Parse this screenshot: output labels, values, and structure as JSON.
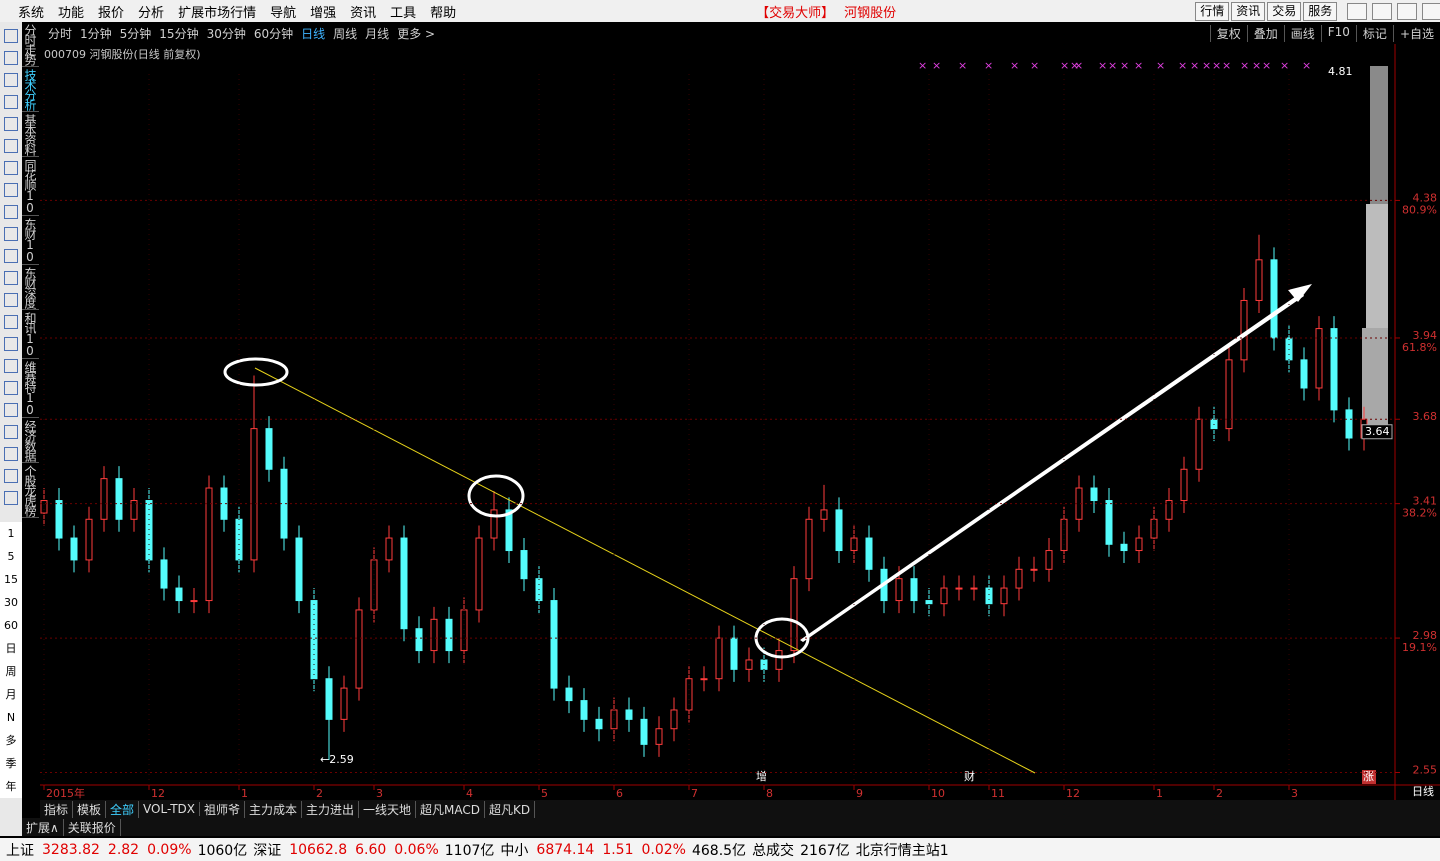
{
  "ui": {
    "menu": [
      "系统",
      "功能",
      "报价",
      "分析",
      "扩展市场行情",
      "导航",
      "增强",
      "资讯",
      "工具",
      "帮助"
    ],
    "app_title": "【交易大师】",
    "stock_title": "河钢股份",
    "top_buttons": [
      "行情",
      "资讯",
      "交易",
      "服务"
    ],
    "periods": [
      "分时",
      "1分钟",
      "5分钟",
      "15分钟",
      "30分钟",
      "60分钟",
      "日线",
      "周线",
      "月线",
      "更多 >"
    ],
    "tools": [
      "复权",
      "叠加",
      "画线",
      "F10",
      "标记",
      "+自选"
    ],
    "side_tabs": [
      "分时走势",
      "技术分析",
      "基本资料",
      "同花顺10",
      "东财10",
      "东财深度",
      "和讯10",
      "维赛特10",
      "经济数据",
      "个股龙虎榜"
    ],
    "side_periods": [
      "1",
      "5",
      "15",
      "30",
      "60",
      "日",
      "周",
      "月",
      "N",
      "多",
      "季",
      "年"
    ],
    "indicator_tabs": [
      "指标",
      "模板",
      "全部",
      "VOL-TDX",
      "祖师爷",
      "主力成本",
      "主力进出",
      "一线天地",
      "超凡MACD",
      "超凡KD"
    ],
    "bottom_tabs": [
      "扩展∧",
      "关联报价"
    ],
    "corner_label": "日线",
    "events": [
      "增",
      "财",
      "涨"
    ],
    "status": [
      [
        "上证",
        "3283.82",
        "2.82",
        "0.09%",
        "1060亿"
      ],
      [
        "深证",
        "10662.8",
        "6.60",
        "0.06%",
        "1107亿"
      ],
      [
        "中小",
        "6874.14",
        "1.51",
        "0.02%",
        "468.5亿"
      ]
    ],
    "status_total": [
      "总成交",
      "2167亿"
    ],
    "status_server": "北京行情主站1"
  },
  "chart_data": {
    "type": "candlestick",
    "title": "000709 河钢股份(日线 前复权)",
    "categories": [
      "2015年",
      null,
      null,
      null,
      null,
      null,
      null,
      "12",
      null,
      null,
      null,
      null,
      null,
      "1",
      null,
      null,
      null,
      null,
      "2",
      null,
      null,
      null,
      "3",
      null,
      null,
      null,
      null,
      null,
      "4",
      null,
      null,
      null,
      null,
      "5",
      null,
      null,
      null,
      null,
      "6",
      null,
      null,
      null,
      null,
      "7",
      null,
      null,
      null,
      null,
      "8",
      null,
      null,
      null,
      null,
      null,
      "9",
      null,
      null,
      null,
      null,
      "10",
      null,
      null,
      null,
      "11",
      null,
      null,
      null,
      null,
      "12",
      null,
      null,
      null,
      null,
      null,
      "1",
      null,
      null,
      null,
      "2",
      null,
      null,
      null,
      null,
      "3",
      null,
      null,
      null,
      null,
      null
    ],
    "open": [
      3.38,
      3.42,
      3.3,
      3.23,
      3.36,
      3.49,
      3.36,
      3.42,
      3.23,
      3.14,
      3.1,
      3.1,
      3.46,
      3.36,
      3.23,
      3.65,
      3.52,
      3.3,
      3.1,
      2.85,
      2.72,
      2.82,
      3.07,
      3.23,
      3.3,
      3.01,
      2.94,
      3.04,
      2.94,
      3.07,
      3.3,
      3.39,
      3.26,
      3.17,
      3.1,
      2.82,
      2.78,
      2.72,
      2.69,
      2.75,
      2.72,
      2.64,
      2.69,
      2.75,
      2.85,
      2.85,
      2.98,
      2.88,
      2.91,
      2.88,
      2.94,
      3.17,
      3.36,
      3.39,
      3.26,
      3.3,
      3.2,
      3.1,
      3.17,
      3.1,
      3.09,
      3.14,
      3.14,
      3.14,
      3.09,
      3.14,
      3.2,
      3.2,
      3.26,
      3.36,
      3.46,
      3.42,
      3.28,
      3.26,
      3.3,
      3.36,
      3.42,
      3.52,
      3.68,
      3.65,
      3.87,
      4.06,
      4.19,
      3.94,
      3.87,
      3.78,
      3.97,
      3.71,
      3.62
    ],
    "high": [
      3.46,
      3.46,
      3.34,
      3.4,
      3.53,
      3.53,
      3.46,
      3.46,
      3.27,
      3.18,
      3.14,
      3.5,
      3.5,
      3.4,
      3.82,
      3.69,
      3.56,
      3.34,
      3.14,
      2.89,
      2.86,
      3.11,
      3.27,
      3.34,
      3.34,
      3.05,
      3.08,
      3.08,
      3.11,
      3.34,
      3.45,
      3.43,
      3.3,
      3.21,
      3.14,
      2.86,
      2.82,
      2.76,
      2.79,
      2.79,
      2.76,
      2.73,
      2.79,
      2.89,
      2.89,
      3.02,
      3.02,
      2.95,
      2.95,
      2.98,
      3.21,
      3.4,
      3.47,
      3.43,
      3.34,
      3.34,
      3.24,
      3.21,
      3.21,
      3.14,
      3.18,
      3.18,
      3.18,
      3.18,
      3.18,
      3.24,
      3.24,
      3.3,
      3.4,
      3.5,
      3.5,
      3.46,
      3.32,
      3.34,
      3.4,
      3.46,
      3.56,
      3.72,
      3.72,
      3.91,
      4.1,
      4.27,
      4.23,
      3.98,
      3.91,
      4.01,
      4.01,
      3.75,
      3.72
    ],
    "low": [
      3.34,
      3.26,
      3.19,
      3.19,
      3.32,
      3.32,
      3.32,
      3.19,
      3.1,
      3.06,
      3.06,
      3.06,
      3.32,
      3.19,
      3.19,
      3.48,
      3.26,
      3.06,
      2.81,
      2.59,
      2.68,
      2.78,
      3.03,
      3.19,
      2.97,
      2.9,
      2.9,
      2.9,
      2.9,
      3.03,
      3.26,
      3.22,
      3.13,
      3.06,
      2.78,
      2.74,
      2.68,
      2.65,
      2.65,
      2.68,
      2.6,
      2.6,
      2.65,
      2.71,
      2.81,
      2.81,
      2.84,
      2.84,
      2.84,
      2.84,
      2.9,
      3.13,
      3.32,
      3.22,
      3.22,
      3.16,
      3.06,
      3.06,
      3.06,
      3.05,
      3.05,
      3.1,
      3.1,
      3.05,
      3.05,
      3.1,
      3.16,
      3.16,
      3.22,
      3.32,
      3.38,
      3.24,
      3.22,
      3.22,
      3.26,
      3.32,
      3.38,
      3.48,
      3.61,
      3.61,
      3.83,
      4.02,
      3.9,
      3.83,
      3.74,
      3.74,
      3.67,
      3.58,
      3.58
    ],
    "close": [
      3.42,
      3.3,
      3.23,
      3.36,
      3.49,
      3.36,
      3.42,
      3.23,
      3.14,
      3.1,
      3.1,
      3.46,
      3.36,
      3.23,
      3.65,
      3.52,
      3.3,
      3.1,
      2.85,
      2.72,
      2.82,
      3.07,
      3.23,
      3.3,
      3.01,
      2.94,
      3.04,
      2.94,
      3.07,
      3.3,
      3.39,
      3.26,
      3.17,
      3.1,
      2.82,
      2.78,
      2.72,
      2.69,
      2.75,
      2.72,
      2.64,
      2.69,
      2.75,
      2.85,
      2.85,
      2.98,
      2.88,
      2.91,
      2.88,
      2.94,
      3.17,
      3.36,
      3.39,
      3.26,
      3.3,
      3.2,
      3.1,
      3.17,
      3.1,
      3.09,
      3.14,
      3.14,
      3.14,
      3.09,
      3.14,
      3.2,
      3.2,
      3.26,
      3.36,
      3.46,
      3.42,
      3.28,
      3.26,
      3.3,
      3.36,
      3.42,
      3.52,
      3.68,
      3.65,
      3.87,
      4.06,
      4.19,
      3.94,
      3.87,
      3.78,
      3.97,
      3.71,
      3.62,
      3.68
    ],
    "up_color": "#ff3c3c",
    "down_color": "#54fcfc",
    "ylim": [
      2.51,
      4.81
    ],
    "yticks": [
      2.55,
      2.98,
      3.41,
      3.68,
      3.94,
      4.38
    ],
    "percent_ticks": [
      {
        "value": 2.98,
        "label": "19.1%"
      },
      {
        "value": 3.41,
        "label": "38.2%"
      },
      {
        "value": 3.94,
        "label": "61.8%"
      },
      {
        "value": 4.38,
        "label": "80.9%"
      }
    ],
    "annotations": [
      {
        "text": "←2.59",
        "value": 2.59
      },
      {
        "text": "4.81",
        "value": 4.81
      },
      {
        "text": "3.64",
        "value": 3.64
      }
    ],
    "grid": true
  }
}
